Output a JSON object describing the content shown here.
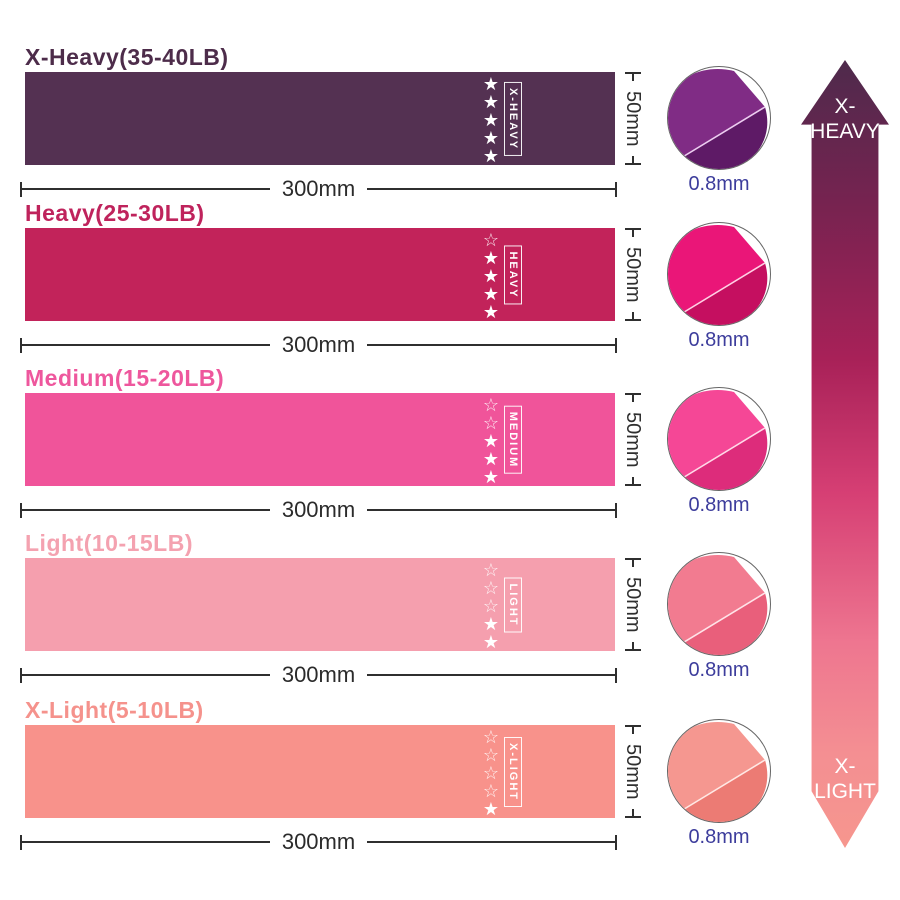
{
  "style": {
    "background": "#ffffff",
    "dimension_color": "#2f2f2f",
    "thickness_text_color": "#3d3d9c",
    "star_color": "#ffffff"
  },
  "bands": [
    {
      "title": "X-Heavy(35-40LB)",
      "label": "X-HEAVY",
      "stars_filled": 5,
      "stars_total": 5,
      "band_color": "#543152",
      "title_color": "#4d2c4a",
      "length_label": "300mm",
      "height_label": "50mm",
      "thickness_label": "0.8mm",
      "fold_main": "#802c85",
      "fold_dark": "#5e1a66",
      "fold_edge": "#eccdf0"
    },
    {
      "title": "Heavy(25-30LB)",
      "label": "HEAVY",
      "stars_filled": 4,
      "stars_total": 5,
      "band_color": "#c2235a",
      "title_color": "#bf235c",
      "length_label": "300mm",
      "height_label": "50mm",
      "thickness_label": "0.8mm",
      "fold_main": "#ea1678",
      "fold_dark": "#c50f60",
      "fold_edge": "#ffd0e4"
    },
    {
      "title": "Medium(15-20LB)",
      "label": "MEDIUM",
      "stars_filled": 3,
      "stars_total": 5,
      "band_color": "#f0549a",
      "title_color": "#ee579d",
      "length_label": "300mm",
      "height_label": "50mm",
      "thickness_label": "0.8mm",
      "fold_main": "#f54796",
      "fold_dark": "#dd2c7b",
      "fold_edge": "#ffd9e8"
    },
    {
      "title": "Light(10-15LB)",
      "label": "LIGHT",
      "stars_filled": 2,
      "stars_total": 5,
      "band_color": "#f59fae",
      "title_color": "#f4a2b0",
      "length_label": "300mm",
      "height_label": "50mm",
      "thickness_label": "0.8mm",
      "fold_main": "#f27b90",
      "fold_dark": "#e95f7b",
      "fold_edge": "#ffe3e8"
    },
    {
      "title": "X-Light(5-10LB)",
      "label": "X-LIGHT",
      "stars_filled": 1,
      "stars_total": 5,
      "band_color": "#f8928b",
      "title_color": "#f5928c",
      "length_label": "300mm",
      "height_label": "50mm",
      "thickness_label": "0.8mm",
      "fold_main": "#f59790",
      "fold_dark": "#ec7b74",
      "fold_edge": "#ffe8e4"
    }
  ],
  "scale_arrow": {
    "top_label_line1": "X-",
    "top_label_line2": "HEAVY",
    "bottom_label_line1": "X-",
    "bottom_label_line2": "LIGHT",
    "gradient_stops": [
      "#4e2a4c",
      "#762350",
      "#a82158",
      "#d63f74",
      "#ee7690",
      "#f48f92",
      "#f6968e"
    ]
  }
}
